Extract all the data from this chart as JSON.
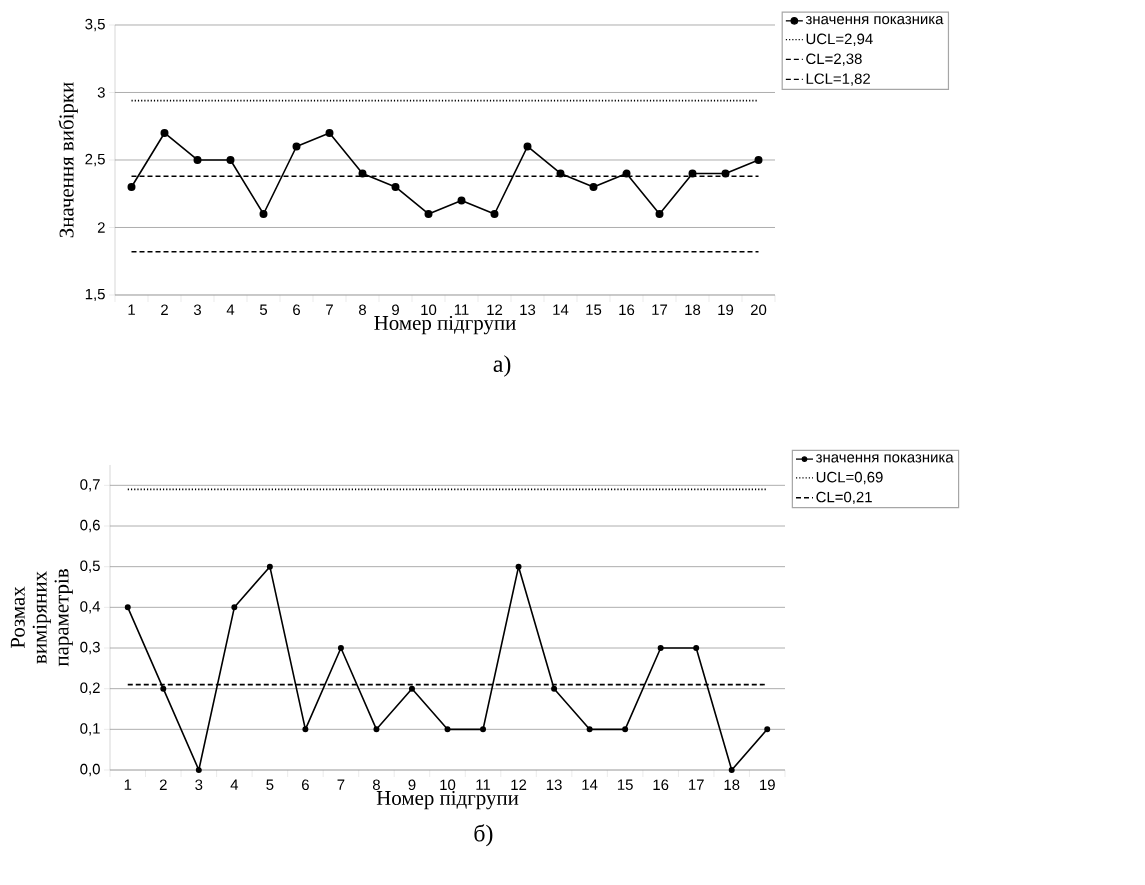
{
  "chart_data": [
    {
      "type": "line",
      "xlabel": "Номер підгрупи",
      "ylabel": "Значення вибірки",
      "annotations": [
        "а)"
      ],
      "categories": [
        "1",
        "2",
        "3",
        "4",
        "5",
        "6",
        "7",
        "8",
        "9",
        "10",
        "11",
        "12",
        "13",
        "14",
        "15",
        "16",
        "17",
        "18",
        "19",
        "20"
      ],
      "series": [
        {
          "name": "значення показника",
          "color": "#000000",
          "marker": "circle",
          "line_style": "solid",
          "values": [
            2.3,
            2.7,
            2.5,
            2.5,
            2.1,
            2.6,
            2.7,
            2.4,
            2.3,
            2.1,
            2.2,
            2.1,
            2.6,
            2.4,
            2.3,
            2.4,
            2.1,
            2.4,
            2.4,
            2.5
          ]
        },
        {
          "name": "UCL=2,94",
          "color": "#000000",
          "line_style": "dotted",
          "values": [
            2.94,
            2.94,
            2.94,
            2.94,
            2.94,
            2.94,
            2.94,
            2.94,
            2.94,
            2.94,
            2.94,
            2.94,
            2.94,
            2.94,
            2.94,
            2.94,
            2.94,
            2.94,
            2.94,
            2.94
          ]
        },
        {
          "name": "CL=2,38",
          "color": "#000000",
          "line_style": "dashed",
          "values": [
            2.38,
            2.38,
            2.38,
            2.38,
            2.38,
            2.38,
            2.38,
            2.38,
            2.38,
            2.38,
            2.38,
            2.38,
            2.38,
            2.38,
            2.38,
            2.38,
            2.38,
            2.38,
            2.38,
            2.38
          ]
        },
        {
          "name": "LCL=1,82",
          "color": "#000000",
          "line_style": "dashed",
          "values": [
            1.82,
            1.82,
            1.82,
            1.82,
            1.82,
            1.82,
            1.82,
            1.82,
            1.82,
            1.82,
            1.82,
            1.82,
            1.82,
            1.82,
            1.82,
            1.82,
            1.82,
            1.82,
            1.82,
            1.82
          ]
        }
      ],
      "ylim": [
        1.5,
        3.5
      ],
      "yticks": [
        {
          "value": 1.5,
          "label": "1,5"
        },
        2,
        {
          "value": 2.5,
          "label": "2,5"
        },
        3,
        {
          "value": 3.5,
          "label": "3,5"
        }
      ],
      "grid": "y",
      "legend": "top right"
    },
    {
      "type": "line",
      "xlabel": "Номер підгрупи",
      "ylabel": "Розмах виміряних параметрів",
      "annotations": [
        "б)"
      ],
      "categories": [
        "1",
        "2",
        "3",
        "4",
        "5",
        "6",
        "7",
        "8",
        "9",
        "10",
        "11",
        "12",
        "13",
        "14",
        "15",
        "16",
        "17",
        "18",
        "19"
      ],
      "series": [
        {
          "name": "значення показника",
          "color": "#000000",
          "marker": "circle",
          "line_style": "solid",
          "values": [
            0.4,
            0.2,
            0.0,
            0.4,
            0.5,
            0.1,
            0.3,
            0.1,
            0.2,
            0.1,
            0.1,
            0.5,
            0.2,
            0.1,
            0.1,
            0.3,
            0.3,
            0.0,
            0.1
          ]
        },
        {
          "name": "UCL=0,69",
          "color": "#000000",
          "line_style": "dotted",
          "values": [
            0.69,
            0.69,
            0.69,
            0.69,
            0.69,
            0.69,
            0.69,
            0.69,
            0.69,
            0.69,
            0.69,
            0.69,
            0.69,
            0.69,
            0.69,
            0.69,
            0.69,
            0.69,
            0.69
          ]
        },
        {
          "name": "CL=0,21",
          "color": "#000000",
          "line_style": "dashed",
          "values": [
            0.21,
            0.21,
            0.21,
            0.21,
            0.21,
            0.21,
            0.21,
            0.21,
            0.21,
            0.21,
            0.21,
            0.21,
            0.21,
            0.21,
            0.21,
            0.21,
            0.21,
            0.21,
            0.21
          ]
        }
      ],
      "ylim": [
        0,
        0.75
      ],
      "yticks": [
        {
          "value": 0,
          "label": "0,0"
        },
        {
          "value": 0.1,
          "label": "0,1"
        },
        {
          "value": 0.2,
          "label": "0,2"
        },
        {
          "value": 0.3,
          "label": "0,3"
        },
        {
          "value": 0.4,
          "label": "0,4"
        },
        {
          "value": 0.5,
          "label": "0,5"
        },
        {
          "value": 0.6,
          "label": "0,6"
        },
        {
          "value": 0.7,
          "label": "0,7"
        }
      ],
      "grid": "y",
      "legend": "top right"
    }
  ]
}
